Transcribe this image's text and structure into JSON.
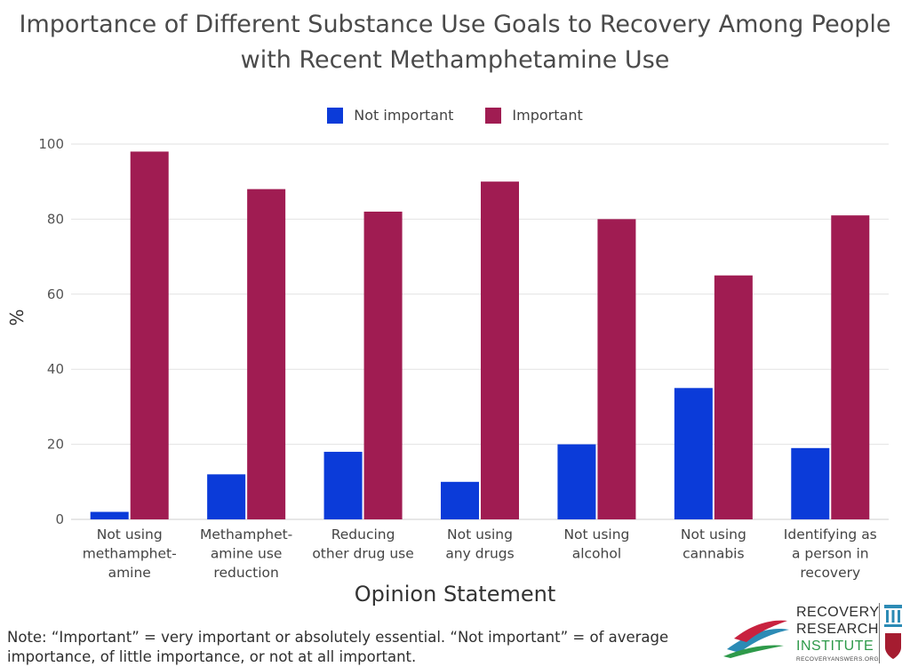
{
  "title_line1": "Importance of Different Substance Use Goals to Recovery Among People",
  "title_line2": "with Recent Methamphetamine Use",
  "note_line1": "Note: “Important” = very important or absolutely essential. “Not important” = of average",
  "note_line2": "importance, of little importance, or not at all important.",
  "logo": {
    "line1": "RECOVERY",
    "line2": "RESEARCH",
    "line3": "INSTITUTE",
    "url": "RECOVERYANSWERS.ORG"
  },
  "colors": {
    "not_important": "#0b3bd9",
    "important": "#a01c52",
    "grid": "#e2e2e2"
  },
  "chart_data": {
    "type": "bar",
    "xlabel": "Opinion Statement",
    "ylabel": "%",
    "ylim": [
      0,
      100
    ],
    "yticks": [
      "0",
      "20",
      "40",
      "60",
      "80",
      "100"
    ],
    "legend_position": "top-center",
    "grid": true,
    "categories": [
      [
        "Not using",
        "methamphet-",
        "amine"
      ],
      [
        "Methamphet-",
        "amine use",
        "reduction"
      ],
      [
        "Reducing",
        "other drug use"
      ],
      [
        "Not using",
        "any drugs"
      ],
      [
        "Not using",
        "alcohol"
      ],
      [
        "Not using",
        "cannabis"
      ],
      [
        "Identifying as",
        "a person in",
        "recovery"
      ]
    ],
    "series": [
      {
        "name": "Not important",
        "values": [
          2,
          12,
          18,
          10,
          20,
          35,
          19
        ]
      },
      {
        "name": "Important",
        "values": [
          98,
          88,
          82,
          90,
          80,
          65,
          81
        ]
      }
    ]
  }
}
